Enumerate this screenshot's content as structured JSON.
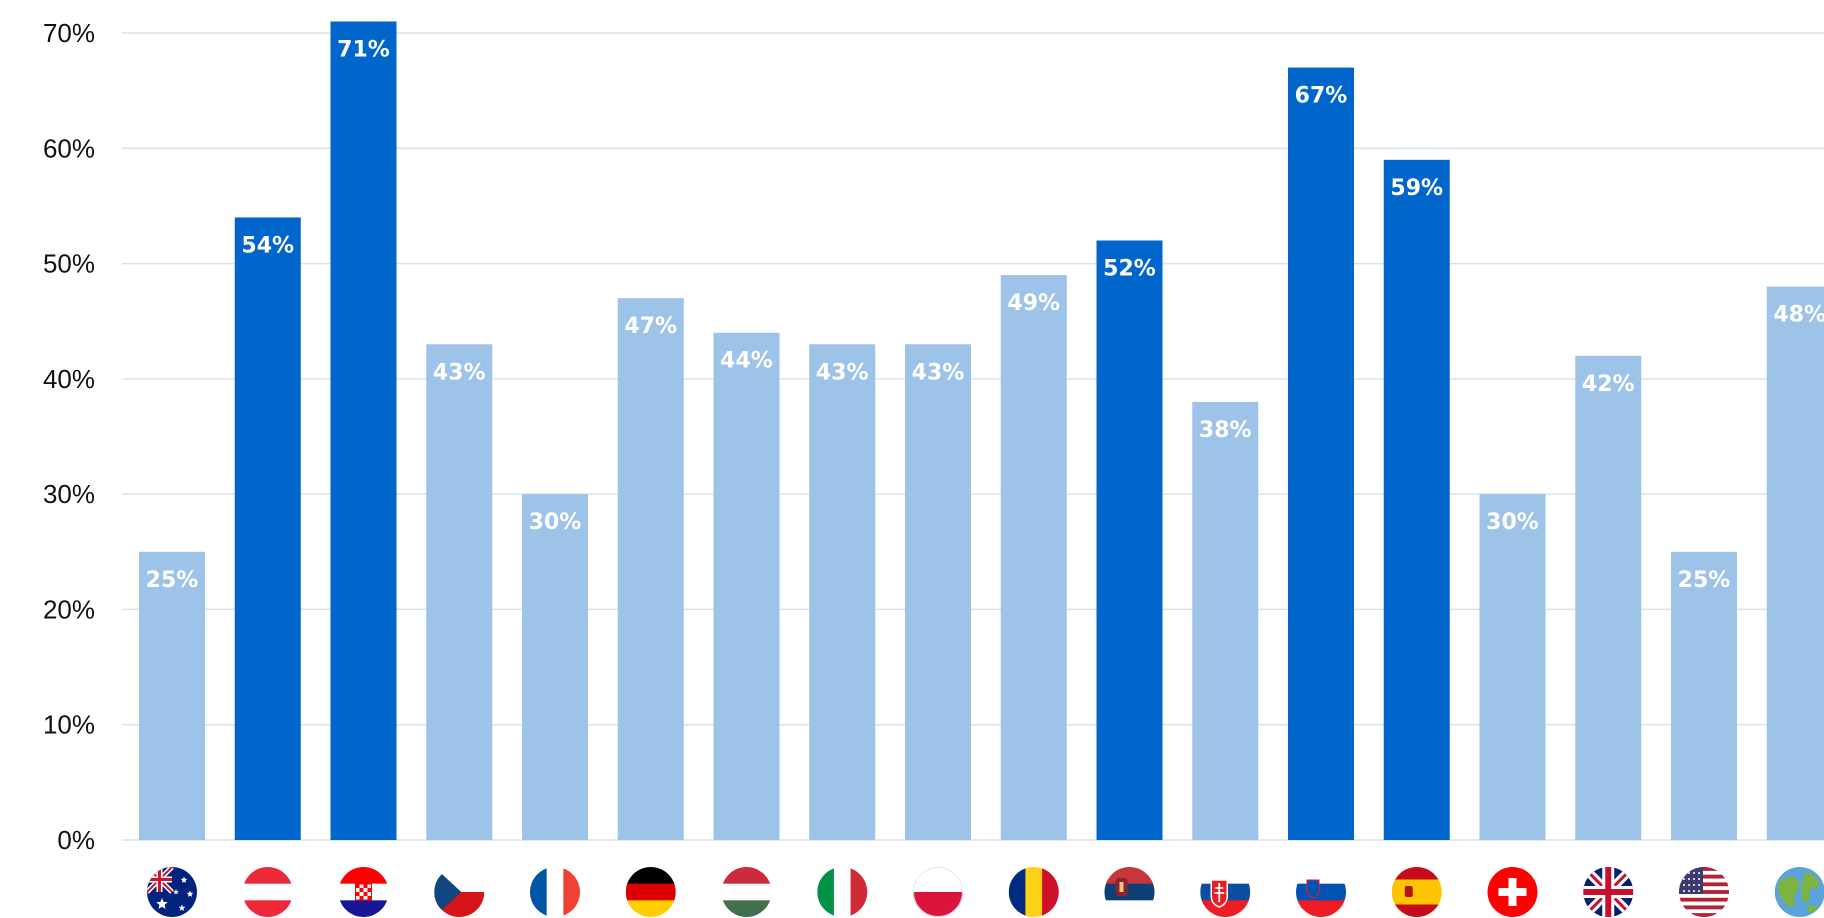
{
  "chart_data": {
    "type": "bar",
    "title": "",
    "xlabel": "",
    "ylabel": "",
    "ylim": [
      0,
      70
    ],
    "y_ticks": [
      0,
      10,
      20,
      30,
      40,
      50,
      60,
      70
    ],
    "y_tick_labels": [
      "0%",
      "10%",
      "20%",
      "30%",
      "40%",
      "50%",
      "60%",
      "70%"
    ],
    "grid": "horizontal",
    "colors": {
      "highlight": "#0066CC",
      "normal": "#9DC3E9",
      "grid": "#D6E4F0",
      "label": "#FFFFFF",
      "axis_text": "#111111"
    },
    "categories": [
      {
        "icon": "australia-flag-icon",
        "value": 25,
        "label": "25%",
        "highlight": false
      },
      {
        "icon": "austria-flag-icon",
        "value": 54,
        "label": "54%",
        "highlight": true
      },
      {
        "icon": "croatia-flag-icon",
        "value": 71,
        "label": "71%",
        "highlight": true
      },
      {
        "icon": "czechia-flag-icon",
        "value": 43,
        "label": "43%",
        "highlight": false
      },
      {
        "icon": "france-flag-icon",
        "value": 30,
        "label": "30%",
        "highlight": false
      },
      {
        "icon": "germany-flag-icon",
        "value": 47,
        "label": "47%",
        "highlight": false
      },
      {
        "icon": "hungary-flag-icon",
        "value": 44,
        "label": "44%",
        "highlight": false
      },
      {
        "icon": "italy-flag-icon",
        "value": 43,
        "label": "43%",
        "highlight": false
      },
      {
        "icon": "poland-flag-icon",
        "value": 43,
        "label": "43%",
        "highlight": false
      },
      {
        "icon": "romania-flag-icon",
        "value": 49,
        "label": "49%",
        "highlight": false
      },
      {
        "icon": "serbia-flag-icon",
        "value": 52,
        "label": "52%",
        "highlight": true
      },
      {
        "icon": "slovakia-flag-icon",
        "value": 38,
        "label": "38%",
        "highlight": false
      },
      {
        "icon": "slovenia-flag-icon",
        "value": 67,
        "label": "67%",
        "highlight": true
      },
      {
        "icon": "spain-flag-icon",
        "value": 59,
        "label": "59%",
        "highlight": true
      },
      {
        "icon": "switzerland-flag-icon",
        "value": 30,
        "label": "30%",
        "highlight": false
      },
      {
        "icon": "uk-flag-icon",
        "value": 42,
        "label": "42%",
        "highlight": false
      },
      {
        "icon": "usa-flag-icon",
        "value": 25,
        "label": "25%",
        "highlight": false
      },
      {
        "icon": "globe-icon",
        "value": 48,
        "label": "48%",
        "highlight": false
      }
    ]
  }
}
